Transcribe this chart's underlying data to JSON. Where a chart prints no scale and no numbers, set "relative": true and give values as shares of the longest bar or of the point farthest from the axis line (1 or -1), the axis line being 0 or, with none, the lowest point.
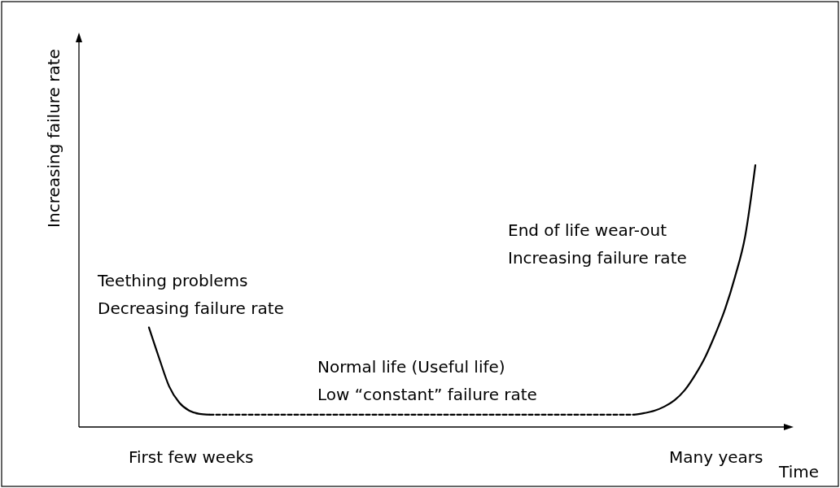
{
  "chart_data": {
    "type": "line",
    "relative": true,
    "xlabel": "Time",
    "ylabel": "Increasing failure rate",
    "categories": [
      null,
      null,
      null,
      null,
      null,
      null,
      null,
      null,
      null,
      null,
      null,
      null,
      null,
      null,
      null,
      null,
      null,
      null,
      null,
      null,
      null,
      null,
      null,
      null,
      null,
      null,
      null,
      null,
      null,
      null,
      null,
      null,
      null,
      null,
      null,
      null,
      null,
      null,
      null,
      null,
      null,
      null,
      null,
      null,
      null,
      null,
      null,
      null,
      null,
      null,
      null,
      null,
      null,
      null,
      null,
      null,
      null,
      null,
      null,
      null,
      null
    ],
    "series": [
      {
        "color": "#000000",
        "line_style": "solid",
        "values": [
          0.38,
          0.264,
          0.155,
          0.093,
          0.062,
          0.05,
          0.047,
          null,
          null,
          null,
          null,
          null,
          null,
          null,
          null,
          null,
          null,
          null,
          null,
          null,
          null,
          null,
          null,
          null,
          null,
          null,
          null,
          null,
          null,
          null,
          null,
          null,
          null,
          null,
          null,
          null,
          null,
          null,
          null,
          null,
          null,
          null,
          null,
          null,
          null,
          null,
          null,
          null,
          null,
          null,
          null,
          null,
          null,
          null,
          null,
          null,
          null,
          null,
          null,
          null,
          null
        ]
      },
      {
        "color": "#000000",
        "line_style": "dashed",
        "values": [
          null,
          null,
          null,
          null,
          null,
          null,
          0.047,
          0.047,
          0.047,
          0.047,
          0.047,
          0.047,
          0.047,
          0.047,
          0.047,
          0.047,
          0.047,
          0.047,
          0.047,
          0.047,
          0.047,
          0.047,
          0.047,
          0.047,
          0.047,
          0.047,
          0.047,
          0.047,
          0.047,
          0.047,
          0.047,
          0.047,
          0.047,
          0.047,
          0.047,
          0.047,
          0.047,
          0.047,
          0.047,
          0.047,
          0.047,
          0.047,
          0.047,
          0.047,
          0.047,
          0.047,
          0.047,
          0.047,
          0.047,
          null,
          null,
          null,
          null,
          null,
          null,
          null,
          null,
          null,
          null,
          null,
          null
        ]
      },
      {
        "color": "#000000",
        "line_style": "solid",
        "values": [
          null,
          null,
          null,
          null,
          null,
          null,
          null,
          null,
          null,
          null,
          null,
          null,
          null,
          null,
          null,
          null,
          null,
          null,
          null,
          null,
          null,
          null,
          null,
          null,
          null,
          null,
          null,
          null,
          null,
          null,
          null,
          null,
          null,
          null,
          null,
          null,
          null,
          null,
          null,
          null,
          null,
          null,
          null,
          null,
          null,
          null,
          null,
          null,
          0.047,
          0.053,
          0.062,
          0.078,
          0.102,
          0.14,
          0.196,
          0.264,
          0.351,
          0.45,
          0.575,
          0.73,
          1
        ]
      }
    ],
    "annotations": [
      "Teething problems",
      "Decreasing failure rate",
      "Normal life (Useful life)",
      "Low “constant” failure rate",
      "End of life wear-out",
      "Increasing failure rate",
      "First few weeks",
      "Many years"
    ]
  }
}
